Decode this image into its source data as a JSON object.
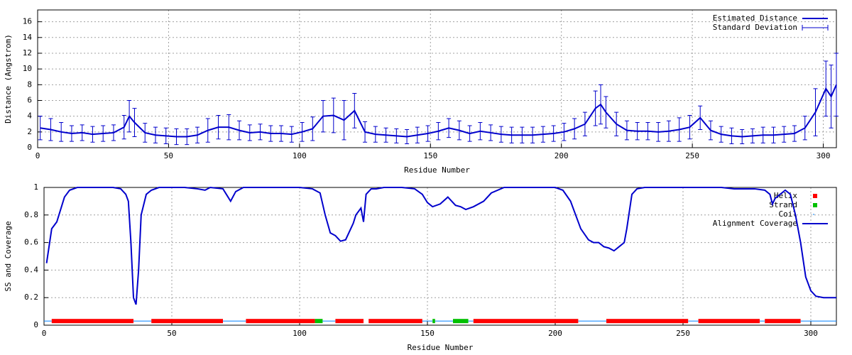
{
  "chart_data": [
    {
      "type": "errorline",
      "xlabel": "Residue Number",
      "ylabel": "Distance (Angstrom)",
      "xlim": [
        0,
        305
      ],
      "xticks": [
        0,
        50,
        100,
        150,
        200,
        250,
        300
      ],
      "ylim": [
        0,
        17.5
      ],
      "yticks": [
        0,
        2,
        4,
        6,
        8,
        10,
        12,
        14,
        16
      ],
      "grid": true,
      "legend": "top-right",
      "x": [
        1,
        5,
        9,
        13,
        17,
        21,
        25,
        29,
        33,
        35,
        37,
        41,
        45,
        49,
        53,
        57,
        61,
        65,
        69,
        73,
        77,
        81,
        85,
        89,
        93,
        97,
        101,
        105,
        109,
        113,
        117,
        121,
        125,
        129,
        133,
        137,
        141,
        145,
        149,
        153,
        157,
        161,
        165,
        169,
        173,
        177,
        181,
        185,
        189,
        193,
        197,
        201,
        205,
        209,
        213,
        215,
        217,
        221,
        225,
        229,
        233,
        237,
        241,
        245,
        249,
        253,
        257,
        261,
        265,
        269,
        273,
        277,
        281,
        285,
        289,
        293,
        297,
        301,
        303,
        305
      ],
      "series": [
        {
          "name": "Estimated Distance",
          "color": "#0000cc",
          "values": [
            2.5,
            2.3,
            2.0,
            1.8,
            1.9,
            1.7,
            1.8,
            1.9,
            2.6,
            4.0,
            3.2,
            1.9,
            1.6,
            1.5,
            1.4,
            1.4,
            1.6,
            2.2,
            2.6,
            2.6,
            2.2,
            1.9,
            2.0,
            1.8,
            1.8,
            1.7,
            2.0,
            2.4,
            4.0,
            4.1,
            3.5,
            4.7,
            2.0,
            1.7,
            1.6,
            1.5,
            1.4,
            1.6,
            1.8,
            2.1,
            2.5,
            2.2,
            1.8,
            2.1,
            1.9,
            1.7,
            1.6,
            1.6,
            1.6,
            1.7,
            1.8,
            2.0,
            2.4,
            3.0,
            5.0,
            5.5,
            4.5,
            3.0,
            2.2,
            2.1,
            2.1,
            2.0,
            2.1,
            2.3,
            2.6,
            3.8,
            2.2,
            1.7,
            1.5,
            1.4,
            1.5,
            1.6,
            1.6,
            1.7,
            1.8,
            2.5,
            4.5,
            7.5,
            6.5,
            8.0
          ]
        },
        {
          "name": "Standard Deviation",
          "color": "#0000cc",
          "values": [
            1.5,
            1.4,
            1.2,
            1.0,
            1.0,
            1.0,
            1.0,
            1.0,
            1.5,
            2.0,
            1.8,
            1.2,
            1.0,
            1.0,
            1.0,
            1.0,
            1.0,
            1.5,
            1.5,
            1.6,
            1.2,
            1.0,
            1.0,
            1.0,
            1.0,
            1.0,
            1.2,
            1.5,
            2.0,
            2.2,
            2.5,
            2.2,
            1.3,
            1.0,
            0.9,
            0.9,
            0.9,
            1.0,
            1.0,
            1.1,
            1.2,
            1.2,
            1.0,
            1.1,
            1.0,
            1.0,
            1.0,
            1.0,
            1.0,
            1.0,
            1.0,
            1.1,
            1.3,
            1.5,
            2.2,
            2.5,
            2.0,
            1.5,
            1.2,
            1.1,
            1.1,
            1.2,
            1.3,
            1.5,
            1.5,
            1.5,
            1.2,
            1.0,
            1.0,
            0.9,
            0.9,
            1.0,
            1.0,
            1.0,
            1.0,
            1.5,
            3.0,
            3.5,
            4.0,
            4.0
          ]
        }
      ]
    },
    {
      "type": "coverage",
      "xlabel": "Residue Number",
      "ylabel": "SS and Coverage",
      "xlim": [
        0,
        310
      ],
      "xticks": [
        0,
        50,
        100,
        150,
        200,
        250,
        300
      ],
      "ylim": [
        0,
        1
      ],
      "yticks": [
        0,
        0.2,
        0.4,
        0.6,
        0.8,
        1
      ],
      "grid": true,
      "legend": "top-right",
      "series": [
        {
          "name": "Helix",
          "color": "#ff0000",
          "y": 0.03,
          "segments": [
            [
              3,
              35
            ],
            [
              42,
              70
            ],
            [
              79,
              106
            ],
            [
              114,
              125
            ],
            [
              127,
              148
            ],
            [
              168,
              209
            ],
            [
              220,
              252
            ],
            [
              256,
              280
            ],
            [
              282,
              296
            ]
          ]
        },
        {
          "name": "Strand",
          "color": "#00c000",
          "y": 0.03,
          "segments": [
            [
              106,
              109
            ],
            [
              152,
              153
            ],
            [
              160,
              166
            ]
          ]
        },
        {
          "name": "Coil",
          "color": "#0080ff",
          "y": 0.03,
          "segments": [
            [
              0,
              3
            ],
            [
              35,
              42
            ],
            [
              70,
              79
            ],
            [
              109,
              114
            ],
            [
              148,
              152
            ],
            [
              153,
              160
            ],
            [
              166,
              168
            ],
            [
              209,
              220
            ],
            [
              252,
              256
            ],
            [
              280,
              282
            ],
            [
              296,
              310
            ]
          ]
        },
        {
          "name": "Alignment Coverage",
          "color": "#0000cc",
          "x": [
            1,
            3,
            5,
            8,
            10,
            13,
            20,
            27,
            30,
            32,
            33,
            34,
            35,
            36,
            37,
            38,
            40,
            42,
            45,
            55,
            60,
            63,
            65,
            70,
            72,
            73,
            75,
            78,
            90,
            100,
            105,
            108,
            110,
            112,
            114,
            116,
            118,
            120,
            121,
            122,
            124,
            125,
            126,
            128,
            130,
            133,
            140,
            145,
            148,
            150,
            152,
            155,
            158,
            161,
            163,
            165,
            168,
            172,
            175,
            180,
            190,
            200,
            203,
            206,
            208,
            210,
            213,
            215,
            217,
            219,
            221,
            223,
            225,
            227,
            228,
            230,
            232,
            235,
            250,
            265,
            270,
            278,
            282,
            284,
            285,
            286,
            288,
            290,
            292,
            294,
            296,
            298,
            300,
            302,
            305,
            310
          ],
          "values": [
            0.45,
            0.7,
            0.75,
            0.93,
            0.98,
            1,
            1,
            1,
            0.99,
            0.95,
            0.9,
            0.6,
            0.2,
            0.15,
            0.4,
            0.8,
            0.95,
            0.98,
            1,
            1,
            0.99,
            0.98,
            1,
            0.99,
            0.93,
            0.9,
            0.97,
            1,
            1,
            1,
            0.99,
            0.96,
            0.8,
            0.67,
            0.65,
            0.61,
            0.62,
            0.7,
            0.74,
            0.8,
            0.85,
            0.75,
            0.95,
            0.99,
            0.99,
            1,
            1,
            0.99,
            0.95,
            0.89,
            0.86,
            0.88,
            0.93,
            0.87,
            0.86,
            0.84,
            0.86,
            0.9,
            0.96,
            1,
            1,
            1,
            0.98,
            0.9,
            0.8,
            0.7,
            0.62,
            0.6,
            0.6,
            0.57,
            0.56,
            0.54,
            0.57,
            0.6,
            0.7,
            0.95,
            0.99,
            1,
            1,
            1,
            0.99,
            0.99,
            0.98,
            0.95,
            0.88,
            0.92,
            0.95,
            0.98,
            0.95,
            0.8,
            0.6,
            0.35,
            0.25,
            0.21,
            0.2,
            0.2
          ]
        }
      ]
    }
  ]
}
